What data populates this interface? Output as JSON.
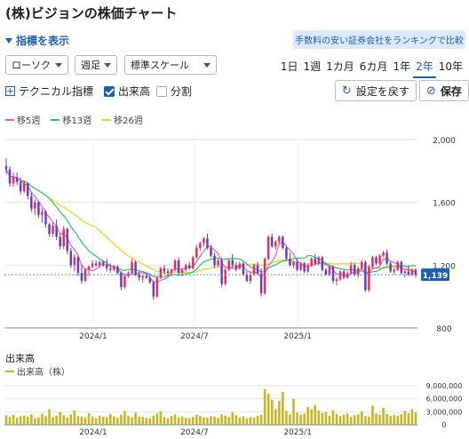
{
  "page": {
    "title": "(株)ビジョンの株価チャート",
    "show_index_label": "指標を表示",
    "promo_text": "手数料の安い証券会社をランキングで比較"
  },
  "controls": {
    "chart_type": "ローソク",
    "interval": "週足",
    "scale": "標準スケール",
    "periods": [
      "1日",
      "1週",
      "1カ月",
      "6カ月",
      "1年",
      "2年",
      "10年"
    ],
    "active_period": "2年",
    "tech_label": "テクニカル指標",
    "volume_label": "出来高",
    "volume_checked": true,
    "split_label": "分割",
    "split_checked": false,
    "reset_label": "設定を戻す",
    "save_label": "保存"
  },
  "colors": {
    "accent": "#1d5fb8",
    "up": "#e0325a",
    "down": "#6a3ec0",
    "ma5": "#e85bbd",
    "ma13": "#23c46b",
    "ma26": "#f0d020",
    "volume": "#c8b624"
  },
  "ma_legend": [
    {
      "label": "移5週",
      "color": "#e85bbd"
    },
    {
      "label": "移13週",
      "color": "#23c46b"
    },
    {
      "label": "移26週",
      "color": "#f0d020"
    }
  ],
  "volume_section": {
    "title": "出来高",
    "legend": "出来高（株）"
  },
  "chart_data": [
    {
      "type": "candlestick",
      "title": "",
      "ylim": [
        800,
        2000
      ],
      "y_ticks": [
        "2,000",
        "1,600",
        "1,200",
        "800"
      ],
      "x_labels": [
        "2024/1",
        "2024/7",
        "2025/1"
      ],
      "current_price": "1,139",
      "ohlc": [
        [
          1830,
          1880,
          1780,
          1810
        ],
        [
          1810,
          1830,
          1700,
          1720
        ],
        [
          1720,
          1790,
          1700,
          1760
        ],
        [
          1760,
          1790,
          1710,
          1730
        ],
        [
          1730,
          1760,
          1650,
          1670
        ],
        [
          1670,
          1740,
          1660,
          1720
        ],
        [
          1720,
          1730,
          1620,
          1640
        ],
        [
          1640,
          1660,
          1540,
          1560
        ],
        [
          1560,
          1620,
          1520,
          1600
        ],
        [
          1600,
          1610,
          1500,
          1520
        ],
        [
          1520,
          1560,
          1470,
          1540
        ],
        [
          1540,
          1550,
          1440,
          1460
        ],
        [
          1460,
          1470,
          1380,
          1400
        ],
        [
          1400,
          1470,
          1380,
          1450
        ],
        [
          1450,
          1490,
          1360,
          1380
        ],
        [
          1380,
          1400,
          1300,
          1320
        ],
        [
          1320,
          1450,
          1300,
          1430
        ],
        [
          1430,
          1440,
          1270,
          1290
        ],
        [
          1290,
          1310,
          1180,
          1200
        ],
        [
          1200,
          1270,
          1160,
          1250
        ],
        [
          1250,
          1260,
          1130,
          1150
        ],
        [
          1150,
          1200,
          1080,
          1100
        ],
        [
          1100,
          1180,
          1090,
          1170
        ],
        [
          1170,
          1200,
          1130,
          1190
        ],
        [
          1190,
          1230,
          1180,
          1210
        ],
        [
          1210,
          1230,
          1190,
          1200
        ],
        [
          1200,
          1230,
          1180,
          1220
        ],
        [
          1220,
          1230,
          1190,
          1200
        ],
        [
          1200,
          1240,
          1160,
          1180
        ],
        [
          1180,
          1210,
          1150,
          1170
        ],
        [
          1170,
          1200,
          1160,
          1190
        ],
        [
          1190,
          1200,
          1140,
          1150
        ],
        [
          1150,
          1160,
          1040,
          1060
        ],
        [
          1060,
          1140,
          1050,
          1130
        ],
        [
          1130,
          1160,
          1120,
          1150
        ],
        [
          1150,
          1240,
          1140,
          1220
        ],
        [
          1220,
          1230,
          1130,
          1140
        ],
        [
          1140,
          1160,
          1100,
          1120
        ],
        [
          1120,
          1140,
          1090,
          1130
        ],
        [
          1130,
          1150,
          1110,
          1120
        ],
        [
          1120,
          1140,
          1080,
          1090
        ],
        [
          1090,
          1100,
          980,
          1000
        ],
        [
          1000,
          1130,
          990,
          1120
        ],
        [
          1120,
          1190,
          1110,
          1180
        ],
        [
          1180,
          1200,
          1140,
          1160
        ],
        [
          1160,
          1180,
          1130,
          1150
        ],
        [
          1150,
          1180,
          1140,
          1170
        ],
        [
          1170,
          1240,
          1160,
          1230
        ],
        [
          1230,
          1250,
          1140,
          1150
        ],
        [
          1150,
          1180,
          1130,
          1170
        ],
        [
          1170,
          1210,
          1160,
          1200
        ],
        [
          1200,
          1220,
          1170,
          1180
        ],
        [
          1180,
          1260,
          1170,
          1250
        ],
        [
          1250,
          1330,
          1240,
          1310
        ],
        [
          1310,
          1350,
          1290,
          1340
        ],
        [
          1340,
          1380,
          1320,
          1370
        ],
        [
          1370,
          1400,
          1300,
          1310
        ],
        [
          1310,
          1330,
          1250,
          1260
        ],
        [
          1260,
          1280,
          1180,
          1200
        ],
        [
          1200,
          1240,
          1190,
          1230
        ],
        [
          1230,
          1250,
          1060,
          1080
        ],
        [
          1080,
          1180,
          1070,
          1170
        ],
        [
          1170,
          1240,
          1160,
          1230
        ],
        [
          1230,
          1270,
          1180,
          1200
        ],
        [
          1200,
          1220,
          1160,
          1180
        ],
        [
          1180,
          1220,
          1170,
          1210
        ],
        [
          1210,
          1220,
          1130,
          1140
        ],
        [
          1140,
          1160,
          1090,
          1100
        ],
        [
          1100,
          1150,
          1080,
          1140
        ],
        [
          1140,
          1210,
          1130,
          1200
        ],
        [
          1200,
          1220,
          1140,
          1150
        ],
        [
          1150,
          1180,
          1000,
          1020
        ],
        [
          1020,
          1250,
          1010,
          1240
        ],
        [
          1240,
          1390,
          1230,
          1380
        ],
        [
          1380,
          1400,
          1310,
          1320
        ],
        [
          1320,
          1360,
          1300,
          1350
        ],
        [
          1350,
          1390,
          1330,
          1380
        ],
        [
          1380,
          1390,
          1300,
          1310
        ],
        [
          1310,
          1320,
          1230,
          1240
        ],
        [
          1240,
          1280,
          1190,
          1200
        ],
        [
          1200,
          1230,
          1180,
          1220
        ],
        [
          1220,
          1240,
          1160,
          1170
        ],
        [
          1170,
          1220,
          1160,
          1210
        ],
        [
          1210,
          1220,
          1150,
          1160
        ],
        [
          1160,
          1210,
          1150,
          1200
        ],
        [
          1200,
          1250,
          1190,
          1240
        ],
        [
          1240,
          1270,
          1200,
          1210
        ],
        [
          1210,
          1260,
          1200,
          1250
        ],
        [
          1250,
          1260,
          1160,
          1170
        ],
        [
          1170,
          1180,
          1130,
          1140
        ],
        [
          1140,
          1200,
          1130,
          1190
        ],
        [
          1190,
          1200,
          1080,
          1100
        ],
        [
          1100,
          1120,
          1070,
          1110
        ],
        [
          1110,
          1170,
          1100,
          1160
        ],
        [
          1160,
          1170,
          1110,
          1120
        ],
        [
          1120,
          1160,
          1110,
          1150
        ],
        [
          1150,
          1220,
          1140,
          1200
        ],
        [
          1200,
          1210,
          1130,
          1140
        ],
        [
          1140,
          1190,
          1120,
          1180
        ],
        [
          1180,
          1230,
          1170,
          1220
        ],
        [
          1220,
          1230,
          1030,
          1040
        ],
        [
          1040,
          1200,
          1030,
          1190
        ],
        [
          1190,
          1260,
          1180,
          1250
        ],
        [
          1250,
          1260,
          1200,
          1210
        ],
        [
          1210,
          1270,
          1200,
          1260
        ],
        [
          1260,
          1290,
          1250,
          1280
        ],
        [
          1280,
          1300,
          1200,
          1210
        ],
        [
          1210,
          1220,
          1150,
          1160
        ],
        [
          1160,
          1180,
          1140,
          1170
        ],
        [
          1170,
          1230,
          1160,
          1220
        ],
        [
          1220,
          1230,
          1140,
          1150
        ],
        [
          1150,
          1170,
          1120,
          1160
        ],
        [
          1160,
          1200,
          1130,
          1140
        ],
        [
          1140,
          1180,
          1130,
          1170
        ],
        [
          1170,
          1180,
          1120,
          1139
        ]
      ]
    },
    {
      "type": "bar",
      "title": "出来高",
      "legend": "出来高（株）",
      "ylim": [
        0,
        9000000
      ],
      "y_ticks": [
        "9,000,000",
        "6,000,000",
        "3,000,000",
        "0"
      ],
      "x_labels": [
        "2024/1",
        "2024/7",
        "2025/1"
      ],
      "values": [
        2200000,
        1800000,
        2300000,
        1600000,
        2000000,
        2100000,
        1900000,
        2400000,
        1500000,
        1700000,
        2600000,
        2000000,
        3500000,
        1800000,
        2100000,
        2900000,
        2200000,
        1700000,
        2400000,
        3300000,
        2000000,
        1800000,
        1600000,
        2700000,
        1900000,
        1500000,
        2100000,
        1800000,
        1700000,
        2500000,
        1900000,
        1600000,
        2300000,
        3200000,
        2000000,
        1700000,
        2800000,
        1900000,
        1800000,
        1600000,
        1400000,
        2100000,
        2600000,
        3100000,
        1800000,
        1500000,
        2000000,
        2400000,
        1700000,
        1900000,
        1600000,
        1500000,
        1800000,
        2300000,
        2100000,
        1700000,
        1600000,
        2000000,
        1900000,
        1600000,
        2400000,
        2100000,
        1800000,
        2900000,
        2200000,
        1700000,
        1900000,
        1500000,
        1800000,
        1600000,
        2000000,
        2300000,
        8200000,
        7200000,
        5800000,
        3600000,
        5500000,
        7600000,
        3200000,
        2400000,
        6000000,
        2800000,
        2300000,
        2600000,
        4100000,
        3600000,
        4600000,
        3300000,
        2700000,
        2900000,
        2100000,
        3300000,
        2500000,
        2000000,
        2300000,
        2600000,
        1800000,
        2200000,
        2400000,
        3100000,
        2000000,
        1900000,
        4400000,
        2600000,
        2300000,
        3900000,
        2500000,
        2000000,
        2200000,
        2100000,
        2400000,
        3200000,
        2700000,
        3600000,
        2900000
      ]
    }
  ]
}
